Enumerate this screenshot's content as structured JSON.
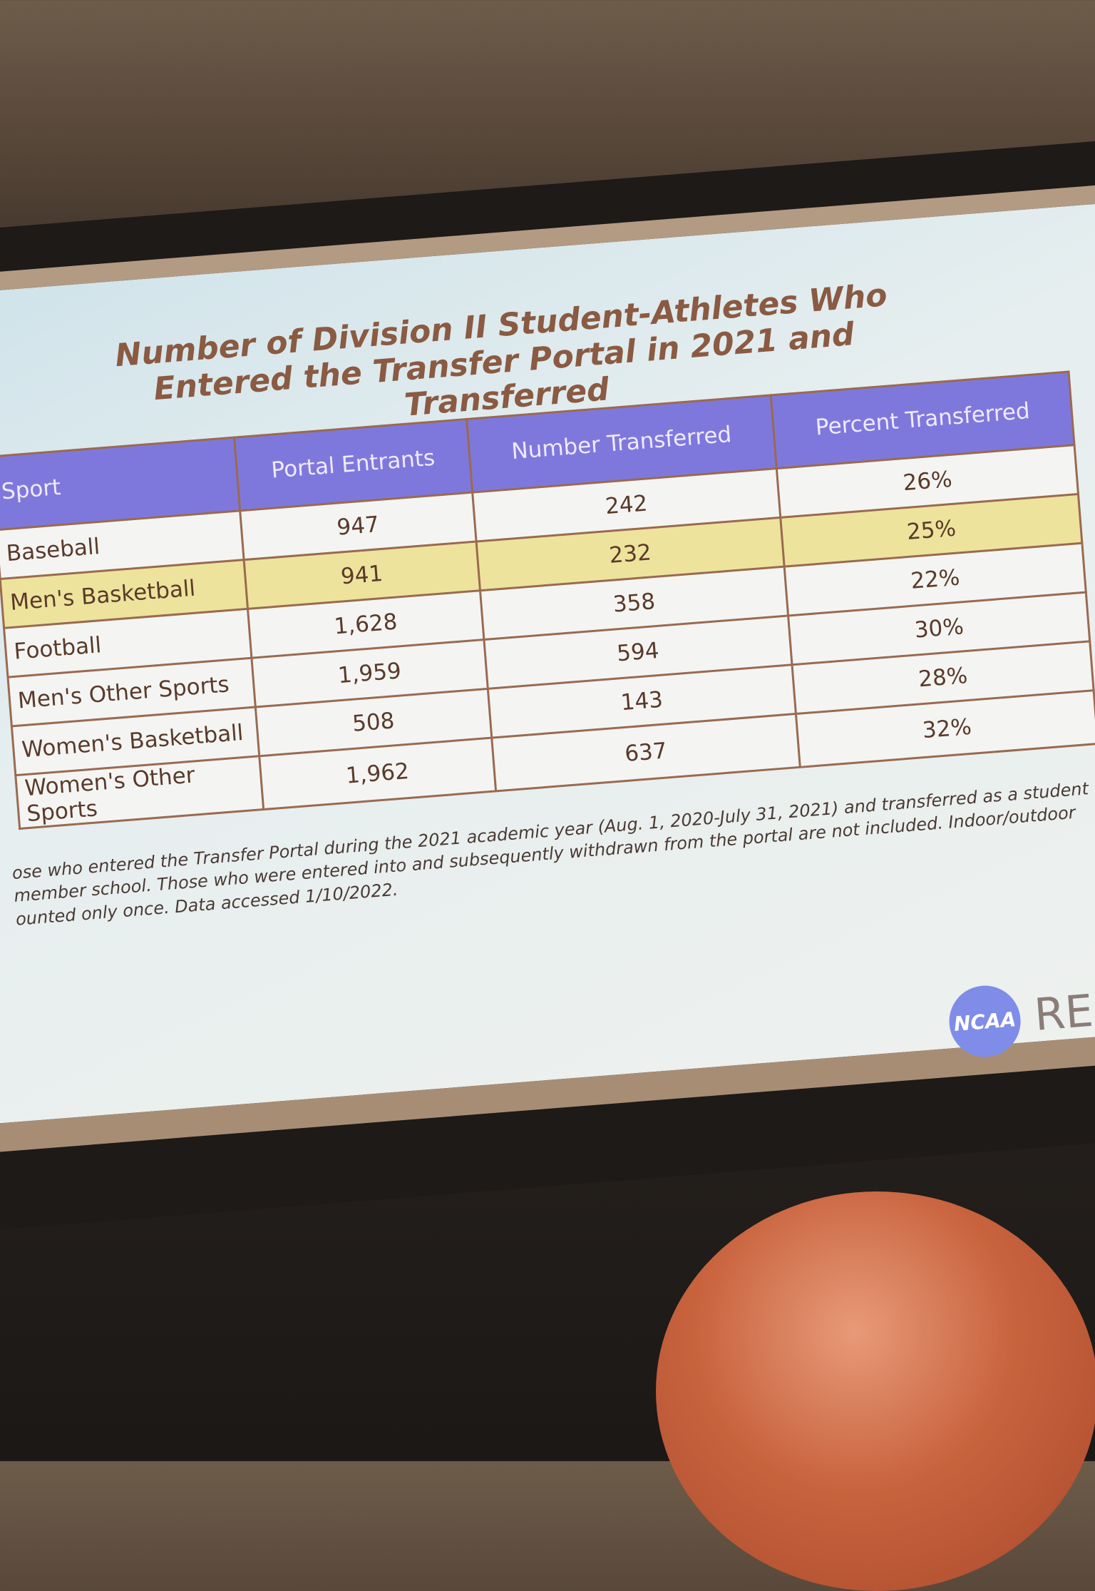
{
  "slide": {
    "title": "Number of Division II Student-Athletes Who Entered the Transfer Portal in 2021 and Transferred",
    "table": {
      "header": [
        "Sport",
        "Portal Entrants",
        "Number Transferred",
        "Percent Transferred"
      ],
      "rows": [
        [
          "Baseball",
          "947",
          "242",
          "26%"
        ],
        [
          "Men's Basketball",
          "941",
          "232",
          "25%"
        ],
        [
          "Football",
          "1,628",
          "358",
          "22%"
        ],
        [
          "Men's Other Sports",
          "1,959",
          "594",
          "30%"
        ],
        [
          "Women's Basketball",
          "508",
          "143",
          "28%"
        ],
        [
          "Women's Other Sports",
          "1,962",
          "637",
          "32%"
        ]
      ],
      "highlighted_rows": [
        1
      ]
    },
    "footnote": [
      "ose who entered the Transfer Portal during the 2021 academic year (Aug. 1, 2020-July 31, 2021) and transferred as a student",
      "member school. Those who were entered into and subsequently withdrawn from the portal are not included. Indoor/outdoor",
      "ounted only once. Data accessed 1/10/2022."
    ],
    "logo": "NCAA",
    "logo_text": "RE"
  }
}
